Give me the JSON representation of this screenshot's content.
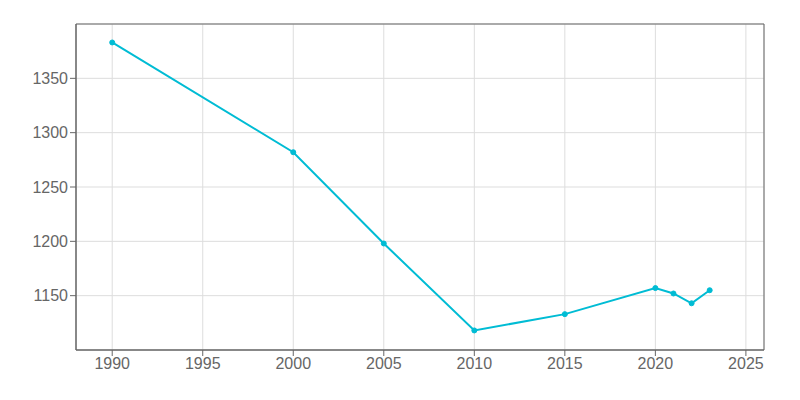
{
  "chart_data": {
    "type": "line",
    "x": [
      1990,
      2000,
      2005,
      2010,
      2015,
      2020,
      2021,
      2022,
      2023
    ],
    "values": [
      1383,
      1282,
      1198,
      1118,
      1133,
      1157,
      1152,
      1143,
      1155
    ],
    "color": "#00bcd4",
    "marker": "circle",
    "xlim": [
      1988,
      2026
    ],
    "ylim": [
      1100,
      1400
    ],
    "xticks": [
      1990,
      1995,
      2000,
      2005,
      2010,
      2015,
      2020,
      2025
    ],
    "yticks": [
      1150,
      1200,
      1250,
      1300,
      1350
    ],
    "grid": true
  }
}
